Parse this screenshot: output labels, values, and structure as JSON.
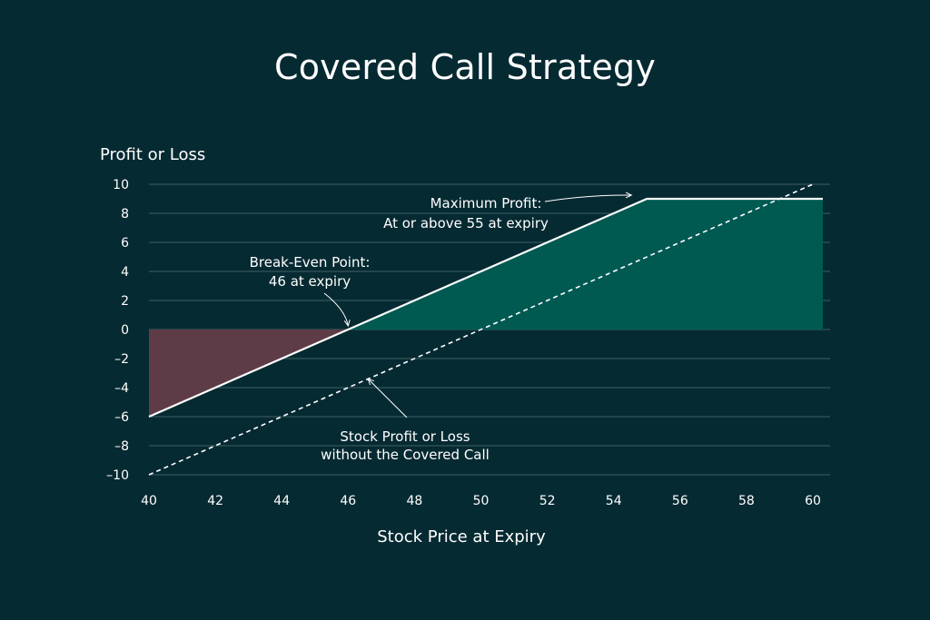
{
  "chart_data": {
    "type": "line",
    "title": "Covered Call Strategy",
    "xlabel": "Stock Price at Expiry",
    "ylabel": "Profit or Loss",
    "xlim": [
      40,
      60.3
    ],
    "ylim": [
      -10,
      10
    ],
    "x_ticks": [
      40,
      42,
      44,
      46,
      48,
      50,
      52,
      54,
      56,
      58,
      60
    ],
    "y_ticks": [
      10,
      8,
      6,
      4,
      2,
      0,
      -2,
      -4,
      -6,
      -8,
      -10
    ],
    "y_tick_labels": [
      "10",
      "8",
      "6",
      "4",
      "2",
      "0",
      "–2",
      "–4",
      "–6",
      "–8",
      "–10"
    ],
    "grid": "horizontal",
    "series": [
      {
        "style": "solid",
        "color": "#ffffff",
        "x": [
          40,
          46,
          55,
          60.3
        ],
        "y": [
          -6,
          0,
          9,
          9
        ]
      },
      {
        "style": "dashed",
        "color": "#ffffff",
        "x": [
          40,
          60
        ],
        "y": [
          -10,
          10
        ]
      }
    ],
    "fills": {
      "loss_color": "#5e3c47",
      "profit_color": "#005a52"
    },
    "annotations": [
      {
        "lines": [
          "Maximum Profit:",
          "At or above 55 at expiry"
        ],
        "target": [
          54.7,
          9
        ]
      },
      {
        "lines": [
          "Break-Even Point:",
          "46 at expiry"
        ],
        "target": [
          46,
          0
        ]
      },
      {
        "lines": [
          "Stock Profit or Loss",
          "without the Covered Call"
        ],
        "target": [
          46.6,
          -3.4
        ]
      }
    ]
  },
  "colors": {
    "background": "#062a32",
    "grid": "#3f6064",
    "text": "#ffffff"
  }
}
